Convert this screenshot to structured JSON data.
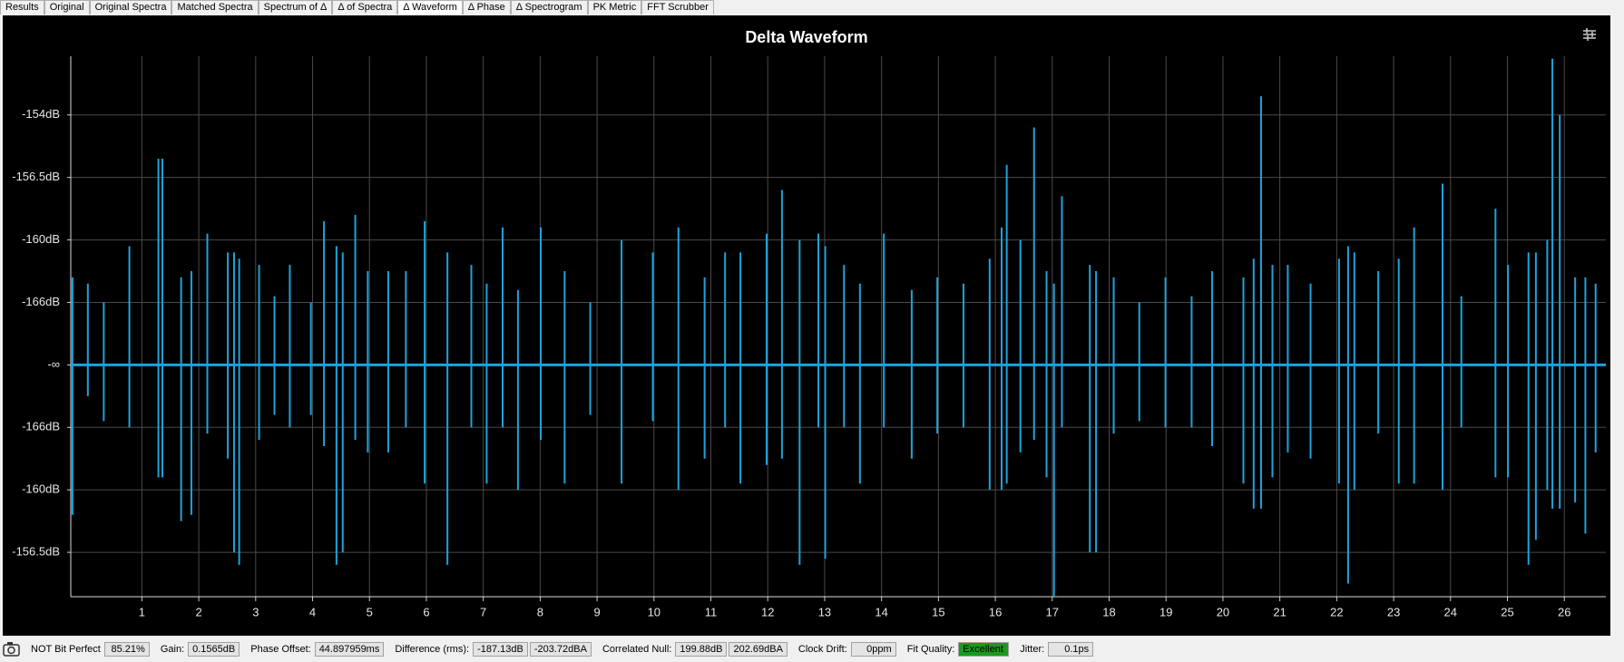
{
  "tabs": [
    "Results",
    "Original",
    "Original Spectra",
    "Matched Spectra",
    "Spectrum of Δ",
    "Δ of Spectra",
    "Δ Waveform",
    "Δ Phase",
    "Δ Spectrogram",
    "PK Metric",
    "FFT Scrubber"
  ],
  "active_tab": 6,
  "chart_data": {
    "type": "spike",
    "title": "Delta Waveform",
    "xlim": [
      -0.25,
      26.73
    ],
    "ylim": [
      -3.71,
      4.94
    ],
    "grid": true,
    "xticks": [
      1,
      2,
      3,
      4,
      5,
      6,
      7,
      8,
      9,
      10,
      11,
      12,
      13,
      14,
      15,
      16,
      17,
      18,
      19,
      20,
      21,
      22,
      23,
      24,
      25,
      26
    ],
    "yticks": [
      {
        "value": 4,
        "label": "-154dB"
      },
      {
        "value": 3,
        "label": "-156.5dB"
      },
      {
        "value": 2,
        "label": "-160dB"
      },
      {
        "value": 1,
        "label": "-166dB"
      },
      {
        "value": 0,
        "label": "-∞"
      },
      {
        "value": -1,
        "label": "-166dB"
      },
      {
        "value": -2,
        "label": "-160dB"
      },
      {
        "value": -3,
        "label": "-156.5dB"
      }
    ],
    "x": [
      -0.22,
      0.05,
      0.33,
      0.78,
      1.29,
      1.36,
      1.69,
      1.87,
      2.15,
      2.51,
      2.62,
      2.71,
      3.06,
      3.33,
      3.6,
      3.97,
      4.2,
      4.42,
      4.53,
      4.75,
      4.97,
      5.33,
      5.64,
      5.97,
      6.37,
      6.79,
      7.06,
      7.34,
      7.61,
      8.01,
      8.43,
      8.88,
      9.43,
      9.98,
      10.43,
      10.89,
      11.25,
      11.52,
      11.98,
      12.25,
      12.56,
      12.89,
      13.01,
      13.34,
      13.62,
      14.04,
      14.53,
      14.98,
      15.44,
      15.9,
      16.11,
      16.2,
      16.44,
      16.68,
      16.9,
      17.03,
      17.17,
      17.66,
      17.77,
      18.08,
      18.53,
      18.99,
      19.45,
      19.81,
      20.36,
      20.54,
      20.67,
      20.87,
      21.14,
      21.54,
      22.04,
      22.2,
      22.31,
      22.73,
      23.09,
      23.36,
      23.86,
      24.19,
      24.79,
      25.01,
      25.37,
      25.5,
      25.7,
      25.79,
      25.92,
      26.19,
      26.37,
      26.55
    ],
    "series": [
      {
        "color": "#1ea3da",
        "values": [
          1.4,
          1.3,
          1.0,
          1.9,
          3.3,
          3.3,
          1.4,
          1.5,
          2.1,
          1.8,
          1.8,
          1.7,
          1.6,
          1.1,
          1.6,
          1.0,
          2.3,
          1.9,
          1.8,
          2.4,
          1.5,
          1.5,
          1.5,
          2.3,
          1.8,
          1.6,
          1.3,
          2.2,
          1.2,
          2.2,
          1.5,
          1.0,
          2.0,
          1.8,
          2.2,
          1.4,
          1.8,
          1.8,
          2.1,
          2.8,
          2.0,
          2.1,
          1.9,
          1.6,
          1.3,
          2.1,
          1.2,
          1.4,
          1.3,
          1.7,
          2.2,
          3.2,
          2.0,
          3.8,
          1.5,
          1.3,
          2.7,
          1.6,
          1.5,
          1.4,
          1.0,
          1.4,
          1.1,
          1.5,
          1.4,
          1.7,
          4.3,
          1.6,
          1.6,
          1.3,
          1.7,
          1.9,
          1.8,
          1.5,
          1.7,
          2.2,
          2.9,
          1.1,
          2.5,
          1.6,
          1.8,
          1.8,
          2.0,
          4.9,
          4.0,
          1.4,
          1.4,
          1.3
        ]
      },
      {
        "color": "#1ea3da",
        "values": [
          -2.4,
          -0.5,
          -0.9,
          -1.0,
          -1.8,
          -1.8,
          -2.5,
          -2.4,
          -1.1,
          -1.5,
          -3.0,
          -3.2,
          -1.2,
          -0.8,
          -1.0,
          -0.8,
          -1.3,
          -3.2,
          -3.0,
          -1.2,
          -1.4,
          -1.4,
          -1.0,
          -1.9,
          -3.2,
          -1.0,
          -1.9,
          -1.0,
          -2.0,
          -1.2,
          -1.9,
          -0.8,
          -1.9,
          -0.9,
          -2.0,
          -1.5,
          -1.0,
          -1.9,
          -1.6,
          -1.5,
          -3.2,
          -1.0,
          -3.1,
          -1.0,
          -1.9,
          -1.0,
          -1.5,
          -1.1,
          -1.0,
          -2.0,
          -2.0,
          -1.9,
          -1.4,
          -1.2,
          -1.8,
          -3.7,
          -1.0,
          -3.0,
          -3.0,
          -1.1,
          -0.9,
          -1.0,
          -1.0,
          -1.3,
          -1.9,
          -2.3,
          -2.3,
          -1.8,
          -1.4,
          -1.5,
          -1.9,
          -3.5,
          -2.0,
          -1.1,
          -1.9,
          -1.9,
          -2.0,
          -1.0,
          -1.8,
          -1.8,
          -3.2,
          -2.8,
          -2.0,
          -2.3,
          -2.3,
          -2.2,
          -2.7,
          -1.4
        ]
      }
    ]
  },
  "status": [
    {
      "label": "NOT Bit Perfect",
      "values": [
        "85.21%"
      ]
    },
    {
      "label": "Gain:",
      "values": [
        "0.1565dB"
      ]
    },
    {
      "label": "Phase Offset:",
      "values": [
        "44.897959ms"
      ]
    },
    {
      "label": "Difference (rms):",
      "values": [
        "-187.13dB",
        "-203.72dBA"
      ]
    },
    {
      "label": "Correlated Null:",
      "values": [
        "199.88dB",
        "202.69dBA"
      ]
    },
    {
      "label": "Clock Drift:",
      "values": [
        "0ppm"
      ]
    },
    {
      "label": "Fit Quality:",
      "values": [
        "Excellent"
      ],
      "highlight": "#1a9a1a"
    },
    {
      "label": "Jitter:",
      "values": [
        "0.1ps"
      ]
    }
  ]
}
